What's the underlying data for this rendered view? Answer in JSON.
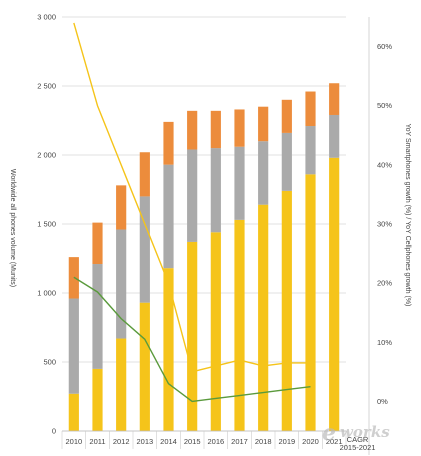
{
  "chart_data": {
    "type": "bar",
    "stacked": true,
    "categories": [
      "2010",
      "2011",
      "2012",
      "2013",
      "2014",
      "2015",
      "2016",
      "2017",
      "2018",
      "2019",
      "2020",
      "2021"
    ],
    "cagr_category": "CAGR 2015-2021",
    "y_left": {
      "label": "Worldwide all phones volume (Munits)",
      "ticks": [
        "0",
        "500",
        "1 000",
        "1 500",
        "2 000",
        "2 500",
        "3 000"
      ],
      "ylim": [
        0,
        3000
      ]
    },
    "y_right": {
      "label": "YoY Smartphones growth (%) / YoY Cellphones growth (%)",
      "ticks": [
        "0%",
        "10%",
        "20%",
        "30%",
        "40%",
        "50%",
        "60%"
      ],
      "ylim": [
        -5,
        65
      ]
    },
    "series": [
      {
        "type": "bar",
        "color": "#f5c41a",
        "values": [
          270,
          450,
          670,
          930,
          1180,
          1370,
          1440,
          1530,
          1640,
          1740,
          1860,
          1980
        ]
      },
      {
        "type": "bar",
        "color": "#aaaaaa",
        "values": [
          690,
          760,
          790,
          770,
          750,
          670,
          610,
          530,
          460,
          420,
          350,
          310
        ]
      },
      {
        "type": "bar",
        "color": "#ec8c3c",
        "values": [
          300,
          300,
          320,
          320,
          310,
          280,
          270,
          270,
          250,
          240,
          250,
          230
        ]
      },
      {
        "type": "line",
        "color": "#f5c41a",
        "values": [
          64,
          50,
          40,
          30,
          20,
          5,
          6,
          7,
          6,
          6.5,
          6.5,
          null
        ]
      },
      {
        "type": "line",
        "color": "#5a9a3c",
        "values": [
          21,
          18.5,
          14,
          10.5,
          3,
          0,
          0.5,
          1,
          1.5,
          2,
          2.5,
          null
        ]
      }
    ]
  },
  "watermark": {
    "prefix": "e",
    "text": "works",
    "color": "#c0c0c0"
  }
}
